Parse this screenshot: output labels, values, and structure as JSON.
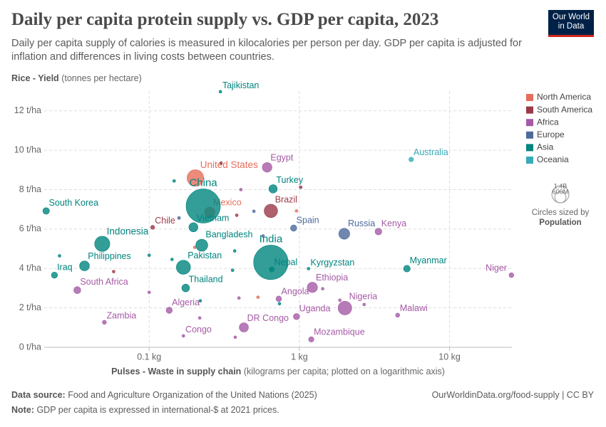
{
  "chart_data": {
    "type": "scatter",
    "title": "Daily per capita protein supply vs. GDP per capita, 2023",
    "subtitle": "Daily per capita supply of calories is measured in kilocalories per person per day. GDP per capita is adjusted for inflation and differences in living costs between countries.",
    "y_label": "Rice - Yield",
    "y_unit": "(tonnes per hectare)",
    "x_label": "Pulses - Waste in supply chain",
    "x_unit": "(kilograms per capita; plotted on a logarithmic axis)",
    "xscale": "log",
    "grid": true,
    "legend": "right",
    "xlim": [
      0.02,
      26
    ],
    "ylim": [
      0,
      13
    ],
    "xticks": [
      {
        "value": 0.1,
        "label": "0.1 kg"
      },
      {
        "value": 1,
        "label": "1 kg"
      },
      {
        "value": 10,
        "label": "10 kg"
      }
    ],
    "yticks": [
      {
        "value": 0,
        "label": "0 t/ha"
      },
      {
        "value": 2,
        "label": "2 t/ha"
      },
      {
        "value": 4,
        "label": "4 t/ha"
      },
      {
        "value": 6,
        "label": "6 t/ha"
      },
      {
        "value": 8,
        "label": "8 t/ha"
      },
      {
        "value": 10,
        "label": "10 t/ha"
      },
      {
        "value": 12,
        "label": "12 t/ha"
      }
    ],
    "size_title": "Circles sized by",
    "size_variable": "Population",
    "size_legend": [
      {
        "value": 1400,
        "label": "1.4B"
      },
      {
        "value": 600,
        "label": "600M"
      }
    ],
    "series": [
      {
        "name": "North America",
        "color": "#e56e5a",
        "labels": [
          "United States",
          "Mexico",
          null,
          null,
          null
        ],
        "x": [
          0.203,
          0.253,
          0.201,
          0.957,
          0.53
        ],
        "y": [
          8.59,
          6.85,
          5.07,
          6.92,
          2.54
        ],
        "size": [
          335,
          128,
          5,
          4,
          3
        ]
      },
      {
        "name": "South America",
        "color": "#9a3a48",
        "labels": [
          "Brazil",
          "Chile",
          null,
          null,
          null,
          null
        ],
        "x": [
          0.646,
          0.1055,
          0.301,
          1.02,
          0.383,
          0.058
        ],
        "y": [
          6.92,
          6.09,
          9.35,
          8.12,
          6.7,
          3.84
        ],
        "size": [
          216,
          20,
          5,
          11,
          7,
          3
        ]
      },
      {
        "name": "Africa",
        "color": "#a55aa5",
        "labels": [
          "Egypt",
          "Kenya",
          "Niger",
          "South Africa",
          "Ethiopia",
          "Angola",
          "Nigeria",
          "Algeria",
          "Uganda",
          "Malawi",
          "DR Congo",
          "Zambia",
          "Congo",
          "Mozambique",
          null,
          null,
          null,
          null,
          null,
          null,
          null,
          null
        ],
        "x": [
          0.61,
          3.36,
          25.8,
          0.0332,
          1.22,
          0.729,
          2.01,
          0.136,
          0.957,
          4.51,
          0.427,
          0.0503,
          0.169,
          1.2,
          0.408,
          0.1,
          0.217,
          0.396,
          0.374,
          1.43,
          1.86,
          2.7
        ],
        "y": [
          9.13,
          5.87,
          3.66,
          2.9,
          3.04,
          2.46,
          1.99,
          1.88,
          1.56,
          1.63,
          1.01,
          1.27,
          0.58,
          0.4,
          8.0,
          2.79,
          1.49,
          2.5,
          0.51,
          2.97,
          2.39,
          2.17
        ],
        "size": [
          112,
          55,
          27,
          60,
          127,
          37,
          224,
          46,
          48,
          21,
          102,
          20,
          6,
          34,
          6,
          8,
          4,
          6,
          4,
          8,
          4,
          5
        ]
      },
      {
        "name": "Europe",
        "color": "#4c6a9c",
        "labels": [
          "Spain",
          "Russia",
          null,
          null,
          null
        ],
        "x": [
          0.916,
          1.99,
          0.158,
          0.573,
          0.498
        ],
        "y": [
          6.05,
          5.76,
          6.56,
          5.65,
          6.9
        ],
        "size": [
          48,
          144,
          11,
          10,
          3
        ]
      },
      {
        "name": "Asia",
        "color": "#00847e",
        "labels": [
          "Tajikistan",
          "Turkey",
          "China",
          "South Korea",
          "Vietnam",
          "Indonesia",
          "Bangladesh",
          "India",
          "Philippines",
          "Pakistan",
          "Nepal",
          "Kyrgyzstan",
          "Myanmar",
          "Iraq",
          "Thailand",
          null,
          null,
          null,
          null,
          null,
          null,
          null,
          null
        ],
        "x": [
          0.298,
          0.668,
          0.229,
          0.0206,
          0.197,
          0.0487,
          0.224,
          0.646,
          0.0371,
          0.169,
          0.655,
          1.15,
          5.2,
          0.0234,
          0.175,
          0.1466,
          0.1,
          0.0253,
          0.142,
          0.371,
          0.219,
          0.359,
          0.737
        ],
        "y": [
          12.97,
          8.04,
          7.17,
          6.92,
          6.09,
          5.25,
          5.18,
          4.31,
          4.13,
          4.06,
          3.95,
          3.99,
          3.99,
          3.66,
          3.01,
          8.44,
          4.67,
          4.64,
          4.46,
          4.89,
          2.36,
          3.91,
          2.21
        ],
        "size": [
          10,
          85,
          1410,
          52,
          99,
          277,
          173,
          1430,
          117,
          240,
          31,
          7,
          54,
          45,
          72,
          10,
          5,
          10,
          5,
          6,
          10,
          6,
          5
        ]
      },
      {
        "name": "Oceania",
        "color": "#38aaba",
        "labels": [
          "Australia"
        ],
        "x": [
          5.55
        ],
        "y": [
          9.53
        ],
        "size": [
          26
        ]
      }
    ]
  },
  "logo": [
    "Our World",
    "in Data"
  ],
  "footer": {
    "source_label": "Data source:",
    "source": "Food and Agriculture Organization of the United Nations (2025)",
    "url": "OurWorldinData.org/food-supply | CC BY",
    "note_label": "Note:",
    "note": "GDP per capita is expressed in international-$ at 2021 prices."
  }
}
